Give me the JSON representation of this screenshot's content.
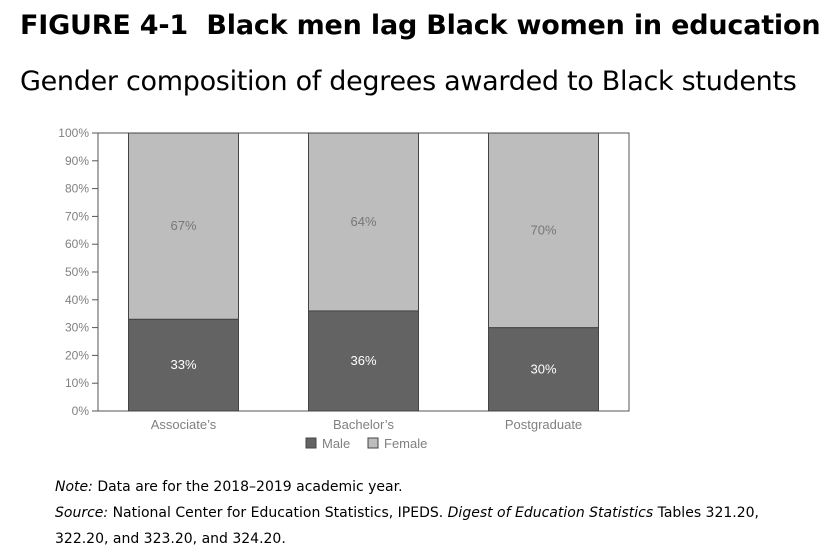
{
  "figure": {
    "number": "FIGURE 4-1",
    "title": "Black men lag Black women in education",
    "subtitle": "Gender composition of degrees awarded to Black students"
  },
  "chart_data": {
    "type": "bar",
    "stacked": true,
    "categories": [
      "Associate’s",
      "Bachelor’s",
      "Postgraduate"
    ],
    "series": [
      {
        "name": "Male",
        "values": [
          33,
          36,
          30
        ],
        "labels": [
          "33%",
          "36%",
          "30%"
        ],
        "color": "#636363",
        "label_color": "#ffffff"
      },
      {
        "name": "Female",
        "values": [
          67,
          64,
          70
        ],
        "labels": [
          "67%",
          "64%",
          "70%"
        ],
        "color": "#bdbdbd",
        "label_color": "#777777"
      }
    ],
    "ylim": [
      0,
      100
    ],
    "yticks": [
      "0%",
      "10%",
      "20%",
      "30%",
      "40%",
      "50%",
      "60%",
      "70%",
      "80%",
      "90%",
      "100%"
    ],
    "grid": false,
    "legend_position": "bottom"
  },
  "notes": {
    "note_label": "Note:",
    "note_text": "Data are for the 2018–2019 academic year.",
    "source_label": "Source:",
    "source_text_1": "National Center for Education Statistics, IPEDS.",
    "source_italic": "Digest of Education Statistics",
    "source_text_2": "Tables 321.20, 322.20, and 323.20, and 324.20."
  }
}
